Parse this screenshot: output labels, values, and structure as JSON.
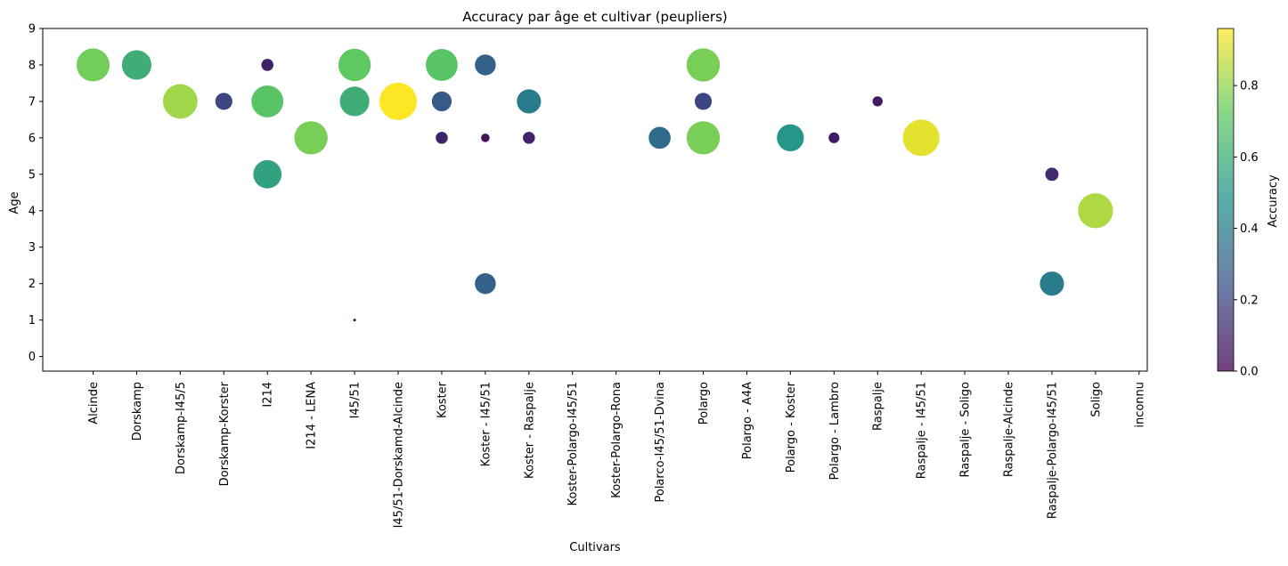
{
  "chart_data": {
    "type": "scatter",
    "title": "Accuracy par âge et cultivar (peupliers)",
    "xlabel": "Cultivars",
    "ylabel": "Age",
    "colorbar_label": "Accuracy",
    "categories": [
      "Alcinde",
      "Dorskamp",
      "Dorskamp-I45/5",
      "Dorskamp-Korster",
      "I214",
      "I214 - LENA",
      "I45/51",
      "I45/51-Dorskamd-Alcinde",
      "Koster",
      "Koster - I45/51",
      "Koster - Raspalje",
      "Koster-Polargo-I45/51",
      "Koster-Polargo-Rona",
      "Polarco-I45/51-Dvina",
      "Polargo",
      "Polargo - A4A",
      "Polargo - Koster",
      "Polargo - Lambro",
      "Raspalje",
      "Raspalje - I45/51",
      "Raspalje - Soligo",
      "Raspalje-Alcinde",
      "Raspalje-Polargo-I45/51",
      "Soligo",
      "inconnu"
    ],
    "yticks": [
      "0",
      "1",
      "2",
      "3",
      "4",
      "5",
      "6",
      "7",
      "8",
      "9"
    ],
    "ylim": [
      -0.4,
      9
    ],
    "colorbar_ticks": [
      "0.0",
      "0.2",
      "0.4",
      "0.6",
      "0.8"
    ],
    "colorbar_range": [
      0,
      0.96
    ],
    "colormap": "viridis",
    "grid": false,
    "points": [
      {
        "x": "Alcinde",
        "y": 8,
        "accuracy": 0.75
      },
      {
        "x": "Dorskamp",
        "y": 8,
        "accuracy": 0.6
      },
      {
        "x": "Dorskamp-I45/5",
        "y": 7,
        "accuracy": 0.82
      },
      {
        "x": "Dorskamp-Korster",
        "y": 7,
        "accuracy": 0.2
      },
      {
        "x": "I214",
        "y": 8,
        "accuracy": 0.1
      },
      {
        "x": "I214",
        "y": 7,
        "accuracy": 0.7
      },
      {
        "x": "I214",
        "y": 5,
        "accuracy": 0.55
      },
      {
        "x": "I214 - LENA",
        "y": 6,
        "accuracy": 0.76
      },
      {
        "x": "I45/51",
        "y": 8,
        "accuracy": 0.72
      },
      {
        "x": "I45/51",
        "y": 7,
        "accuracy": 0.6
      },
      {
        "x": "I45/51",
        "y": 1,
        "accuracy": 0.0
      },
      {
        "x": "I45/51-Dorskamd-Alcinde",
        "y": 7,
        "accuracy": 0.96
      },
      {
        "x": "Koster",
        "y": 8,
        "accuracy": 0.7
      },
      {
        "x": "Koster",
        "y": 7,
        "accuracy": 0.27
      },
      {
        "x": "Koster",
        "y": 6,
        "accuracy": 0.1
      },
      {
        "x": "Koster - I45/51",
        "y": 8,
        "accuracy": 0.3
      },
      {
        "x": "Koster - I45/51",
        "y": 6,
        "accuracy": 0.05
      },
      {
        "x": "Koster - I45/51",
        "y": 2,
        "accuracy": 0.3
      },
      {
        "x": "Koster - Raspalje",
        "y": 7,
        "accuracy": 0.4
      },
      {
        "x": "Koster - Raspalje",
        "y": 6,
        "accuracy": 0.1
      },
      {
        "x": "Polarco-I45/51-Dvina",
        "y": 6,
        "accuracy": 0.33
      },
      {
        "x": "Polargo",
        "y": 8,
        "accuracy": 0.76
      },
      {
        "x": "Polargo",
        "y": 7,
        "accuracy": 0.2
      },
      {
        "x": "Polargo",
        "y": 6,
        "accuracy": 0.76
      },
      {
        "x": "Polargo - Koster",
        "y": 6,
        "accuracy": 0.5
      },
      {
        "x": "Polargo - Lambro",
        "y": 6,
        "accuracy": 0.08
      },
      {
        "x": "Raspalje",
        "y": 7,
        "accuracy": 0.07
      },
      {
        "x": "Raspalje - I45/51",
        "y": 6,
        "accuracy": 0.92
      },
      {
        "x": "Raspalje-Polargo-I45/51",
        "y": 5,
        "accuracy": 0.12
      },
      {
        "x": "Raspalje-Polargo-I45/51",
        "y": 2,
        "accuracy": 0.4
      },
      {
        "x": "Soligo",
        "y": 4,
        "accuracy": 0.84
      }
    ]
  }
}
